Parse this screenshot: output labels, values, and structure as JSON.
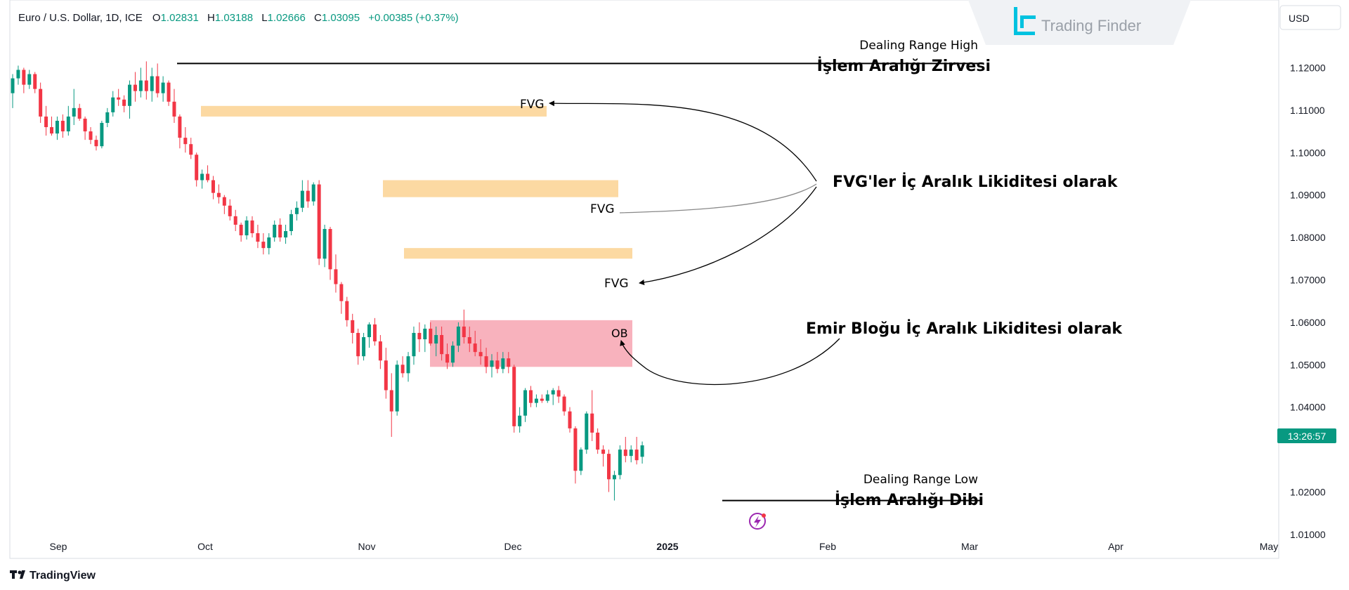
{
  "header": {
    "symbol": "Euro / U.S. Dollar, 1D, ICE",
    "o_label": "O",
    "o_value": "1.02831",
    "h_label": "H",
    "h_value": "1.03188",
    "l_label": "L",
    "l_value": "1.02666",
    "c_label": "C",
    "c_value": "1.03095",
    "change": "+0.00385 (+0.37%)",
    "currency": "USD"
  },
  "brand": {
    "logo_text": "Trading Finder"
  },
  "footer": {
    "logo_text": "TradingView"
  },
  "price_badge": "13:26:57",
  "colors": {
    "up": "#089981",
    "down": "#f23645",
    "fvg": "#fcd9a2",
    "ob": "#f8b2bd",
    "badge": "#089981"
  },
  "annotations": {
    "range_high_en": "Dealing Range High",
    "range_high_tr": "İşlem Aralığı Zirvesi",
    "range_low_en": "Dealing Range Low",
    "range_low_tr": "İşlem Aralığı Dibi",
    "fvg_label": "FVG",
    "ob_label": "OB",
    "fvg_note": "FVG'ler İç Aralık Likiditesi olarak",
    "ob_note": "Emir Bloğu İç Aralık Likiditesi olarak"
  },
  "chart_data": {
    "type": "candlestick",
    "title": "Euro / U.S. Dollar, 1D, ICE",
    "y_ticks": [
      "1.12000",
      "1.11000",
      "1.10000",
      "1.09000",
      "1.08000",
      "1.07000",
      "1.06000",
      "1.05000",
      "1.04000",
      "1.02000",
      "1.01000"
    ],
    "x_ticks": [
      "Sep",
      "Oct",
      "Nov",
      "Dec",
      "2025",
      "Feb",
      "Mar",
      "Apr",
      "May"
    ],
    "ylim": [
      1.0075,
      1.131
    ],
    "dealing_range": {
      "high": 1.121,
      "low": 1.018
    },
    "fvg_zones": [
      {
        "top": 1.111,
        "bottom": 1.1085,
        "label": "FVG"
      },
      {
        "top": 1.0935,
        "bottom": 1.0895,
        "label": "FVG"
      },
      {
        "top": 1.0775,
        "bottom": 1.075,
        "label": "FVG"
      }
    ],
    "ob_zone": {
      "top": 1.0605,
      "bottom": 1.0495,
      "label": "OB"
    },
    "candles": [
      [
        1.114,
        1.1185,
        1.1105,
        1.1175
      ],
      [
        1.1175,
        1.1205,
        1.116,
        1.1195
      ],
      [
        1.1195,
        1.12,
        1.114,
        1.116
      ],
      [
        1.116,
        1.1195,
        1.115,
        1.1185
      ],
      [
        1.1185,
        1.119,
        1.114,
        1.115
      ],
      [
        1.115,
        1.1165,
        1.107,
        1.1085
      ],
      [
        1.1085,
        1.111,
        1.104,
        1.106
      ],
      [
        1.106,
        1.1085,
        1.104,
        1.1045
      ],
      [
        1.1045,
        1.1085,
        1.103,
        1.1075
      ],
      [
        1.1075,
        1.109,
        1.1035,
        1.105
      ],
      [
        1.105,
        1.111,
        1.104,
        1.1085
      ],
      [
        1.1085,
        1.115,
        1.1065,
        1.1105
      ],
      [
        1.1105,
        1.1115,
        1.1075,
        1.108
      ],
      [
        1.108,
        1.1085,
        1.103,
        1.105
      ],
      [
        1.105,
        1.106,
        1.102,
        1.103
      ],
      [
        1.103,
        1.104,
        1.1005,
        1.1015
      ],
      [
        1.1015,
        1.1075,
        1.101,
        1.107
      ],
      [
        1.107,
        1.1105,
        1.106,
        1.1095
      ],
      [
        1.1095,
        1.1145,
        1.1085,
        1.113
      ],
      [
        1.113,
        1.115,
        1.111,
        1.1125
      ],
      [
        1.1125,
        1.1135,
        1.1095,
        1.111
      ],
      [
        1.111,
        1.117,
        1.108,
        1.116
      ],
      [
        1.116,
        1.119,
        1.112,
        1.1145
      ],
      [
        1.1145,
        1.12,
        1.113,
        1.117
      ],
      [
        1.117,
        1.1215,
        1.1125,
        1.1145
      ],
      [
        1.1145,
        1.12,
        1.112,
        1.118
      ],
      [
        1.118,
        1.121,
        1.113,
        1.114
      ],
      [
        1.114,
        1.118,
        1.112,
        1.1165
      ],
      [
        1.1165,
        1.117,
        1.111,
        1.112
      ],
      [
        1.112,
        1.115,
        1.107,
        1.1085
      ],
      [
        1.1085,
        1.109,
        1.101,
        1.1035
      ],
      [
        1.1035,
        1.106,
        1.1,
        1.102
      ],
      [
        1.102,
        1.1035,
        1.0985,
        1.0995
      ],
      [
        1.0995,
        1.1,
        1.092,
        1.0935
      ],
      [
        1.0935,
        1.096,
        1.0915,
        1.095
      ],
      [
        1.095,
        1.097,
        1.093,
        1.0935
      ],
      [
        1.0935,
        1.0945,
        1.089,
        1.0905
      ],
      [
        1.0905,
        1.0925,
        1.088,
        1.0895
      ],
      [
        1.0895,
        1.09,
        1.0855,
        1.0875
      ],
      [
        1.0875,
        1.089,
        1.084,
        1.085
      ],
      [
        1.085,
        1.0865,
        1.0815,
        1.083
      ],
      [
        1.083,
        1.0835,
        1.079,
        1.0805
      ],
      [
        1.0805,
        1.085,
        1.0795,
        1.084
      ],
      [
        1.084,
        1.085,
        1.08,
        1.081
      ],
      [
        1.081,
        1.083,
        1.0775,
        1.079
      ],
      [
        1.079,
        1.081,
        1.076,
        1.0775
      ],
      [
        1.0775,
        1.081,
        1.076,
        1.08
      ],
      [
        1.08,
        1.084,
        1.079,
        1.083
      ],
      [
        1.083,
        1.0845,
        1.079,
        1.08
      ],
      [
        1.08,
        1.083,
        1.0785,
        1.0815
      ],
      [
        1.0815,
        1.0865,
        1.0805,
        1.0855
      ],
      [
        1.0855,
        1.0885,
        1.084,
        1.087
      ],
      [
        1.087,
        1.0935,
        1.086,
        1.091
      ],
      [
        1.091,
        1.0935,
        1.087,
        1.0885
      ],
      [
        1.0885,
        1.093,
        1.0875,
        1.0925
      ],
      [
        1.0925,
        1.0935,
        1.0735,
        1.075
      ],
      [
        1.075,
        1.083,
        1.073,
        1.082
      ],
      [
        1.082,
        1.0825,
        1.07,
        1.0725
      ],
      [
        1.0725,
        1.076,
        1.067,
        1.069
      ],
      [
        1.069,
        1.0695,
        1.062,
        1.065
      ],
      [
        1.065,
        1.066,
        1.059,
        1.0605
      ],
      [
        1.0605,
        1.062,
        1.055,
        1.0575
      ],
      [
        1.0575,
        1.0585,
        1.05,
        1.052
      ],
      [
        1.052,
        1.0575,
        1.051,
        1.0565
      ],
      [
        1.0565,
        1.06,
        1.054,
        1.0595
      ],
      [
        1.0595,
        1.061,
        1.0545,
        1.0555
      ],
      [
        1.0555,
        1.057,
        1.049,
        1.051
      ],
      [
        1.051,
        1.054,
        1.042,
        1.044
      ],
      [
        1.044,
        1.048,
        1.033,
        1.039
      ],
      [
        1.039,
        1.051,
        1.038,
        1.05
      ],
      [
        1.05,
        1.052,
        1.047,
        1.048
      ],
      [
        1.048,
        1.053,
        1.046,
        1.052
      ],
      [
        1.052,
        1.059,
        1.05,
        1.0575
      ],
      [
        1.0575,
        1.06,
        1.053,
        1.056
      ],
      [
        1.056,
        1.0595,
        1.053,
        1.0585
      ],
      [
        1.0585,
        1.06,
        1.0545,
        1.055
      ],
      [
        1.055,
        1.059,
        1.052,
        1.057
      ],
      [
        1.057,
        1.059,
        1.051,
        1.0525
      ],
      [
        1.0525,
        1.055,
        1.049,
        1.0505
      ],
      [
        1.0505,
        1.0555,
        1.0495,
        1.0545
      ],
      [
        1.0545,
        1.06,
        1.053,
        1.059
      ],
      [
        1.059,
        1.063,
        1.055,
        1.0565
      ],
      [
        1.0565,
        1.059,
        1.053,
        1.055
      ],
      [
        1.055,
        1.058,
        1.052,
        1.053
      ],
      [
        1.053,
        1.056,
        1.05,
        1.052
      ],
      [
        1.052,
        1.054,
        1.048,
        1.0495
      ],
      [
        1.0495,
        1.0525,
        1.047,
        1.051
      ],
      [
        1.051,
        1.053,
        1.048,
        1.049
      ],
      [
        1.049,
        1.053,
        1.048,
        1.0515
      ],
      [
        1.0515,
        1.053,
        1.048,
        1.0495
      ],
      [
        1.0495,
        1.05,
        1.034,
        1.0355
      ],
      [
        1.0355,
        1.04,
        1.034,
        1.038
      ],
      [
        1.038,
        1.0445,
        1.0365,
        1.044
      ],
      [
        1.044,
        1.045,
        1.04,
        1.041
      ],
      [
        1.041,
        1.043,
        1.04,
        1.042
      ],
      [
        1.042,
        1.043,
        1.041,
        1.0415
      ],
      [
        1.0415,
        1.044,
        1.041,
        1.043
      ],
      [
        1.043,
        1.0445,
        1.0405,
        1.044
      ],
      [
        1.044,
        1.045,
        1.041,
        1.0425
      ],
      [
        1.0425,
        1.043,
        1.038,
        1.039
      ],
      [
        1.039,
        1.04,
        1.034,
        1.035
      ],
      [
        1.035,
        1.0355,
        1.022,
        1.025
      ],
      [
        1.025,
        1.0305,
        1.024,
        1.03
      ],
      [
        1.03,
        1.039,
        1.029,
        1.0385
      ],
      [
        1.0385,
        1.044,
        1.032,
        1.034
      ],
      [
        1.034,
        1.035,
        1.029,
        1.03
      ],
      [
        1.03,
        1.031,
        1.026,
        1.029
      ],
      [
        1.029,
        1.03,
        1.02,
        1.023
      ],
      [
        1.023,
        1.025,
        1.018,
        1.024
      ],
      [
        1.024,
        1.031,
        1.023,
        1.03
      ],
      [
        1.03,
        1.033,
        1.027,
        1.0285
      ],
      [
        1.0285,
        1.031,
        1.027,
        1.03
      ],
      [
        1.03,
        1.033,
        1.0265,
        1.0275
      ],
      [
        1.0283,
        1.0319,
        1.0267,
        1.031
      ]
    ]
  }
}
